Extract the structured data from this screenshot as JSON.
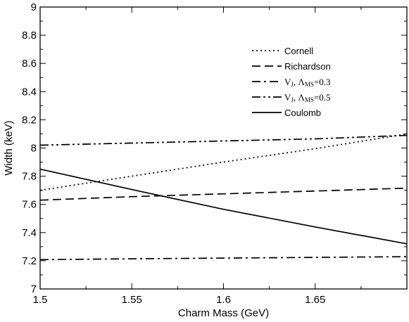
{
  "chart_data": {
    "type": "line",
    "xlabel": "Charm Mass (GeV)",
    "ylabel": "Width (keV)",
    "xlim": [
      1.5,
      1.7
    ],
    "ylim": [
      7.0,
      9.0
    ],
    "xticks": [
      1.5,
      1.55,
      1.6,
      1.65
    ],
    "xtick_labels": [
      "1.5",
      "1.55",
      "1.6",
      "1.65"
    ],
    "yticks": [
      7.0,
      7.2,
      7.4,
      7.6,
      7.8,
      8.0,
      8.2,
      8.4,
      8.6,
      8.8,
      9.0
    ],
    "ytick_labels": [
      "7",
      "7.2",
      "7.4",
      "7.6",
      "7.8",
      "8",
      "8.2",
      "8.4",
      "8.6",
      "8.8",
      "9"
    ],
    "grid": false,
    "legend_position": "top-right",
    "series": [
      {
        "name": "Cornell",
        "legend": {
          "main": "Cornell"
        },
        "dash": "dotted",
        "x": [
          1.5,
          1.55,
          1.6,
          1.65,
          1.7
        ],
        "y": [
          7.7,
          7.8,
          7.9,
          7.995,
          8.1
        ]
      },
      {
        "name": "Richardson",
        "legend": {
          "main": "Richardson"
        },
        "dash": "dashed",
        "x": [
          1.5,
          1.55,
          1.6,
          1.65,
          1.7
        ],
        "y": [
          7.63,
          7.655,
          7.675,
          7.695,
          7.715
        ]
      },
      {
        "name": "V_J, Λ_MS=0.3",
        "legend": {
          "main": "V",
          "sub1": "J",
          "mid": ", Λ",
          "sub2": "MS",
          "tail": "=0.3"
        },
        "dash": "dashdot",
        "x": [
          1.5,
          1.55,
          1.6,
          1.65,
          1.7
        ],
        "y": [
          7.208,
          7.214,
          7.219,
          7.224,
          7.229
        ]
      },
      {
        "name": "V_J, Λ_MS=0.5",
        "legend": {
          "main": "V",
          "sub1": "J",
          "mid": ", Λ",
          "sub2": "MS",
          "tail": "=0.5"
        },
        "dash": "dashdotdot",
        "x": [
          1.5,
          1.55,
          1.6,
          1.65,
          1.7
        ],
        "y": [
          8.02,
          8.035,
          8.05,
          8.065,
          8.09
        ]
      },
      {
        "name": "Coulomb",
        "legend": {
          "main": "Coulomb"
        },
        "dash": "solid",
        "x": [
          1.5,
          1.55,
          1.6,
          1.65,
          1.7
        ],
        "y": [
          7.85,
          7.705,
          7.565,
          7.44,
          7.32
        ]
      }
    ]
  }
}
